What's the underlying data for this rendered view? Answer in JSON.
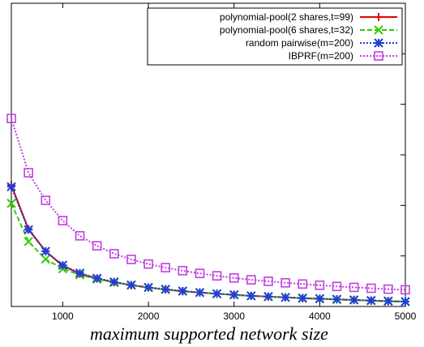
{
  "chart_data": {
    "type": "line",
    "title": "",
    "xlabel": "maximum supported network size",
    "ylabel": "",
    "xlim": [
      400,
      5000
    ],
    "ylim": [
      0,
      1
    ],
    "x_ticks": [
      1000,
      2000,
      3000,
      4000,
      5000
    ],
    "y_ticks": [
      0,
      0.1667,
      0.3333,
      0.5,
      0.6667,
      0.8333,
      1
    ],
    "grid": false,
    "legend_position": "top-right",
    "x": [
      400,
      600,
      800,
      1000,
      1200,
      1400,
      1600,
      1800,
      2000,
      2200,
      2400,
      2600,
      2800,
      3000,
      3200,
      3400,
      3600,
      3800,
      4000,
      4200,
      4400,
      4600,
      4800,
      5000
    ],
    "series": [
      {
        "name": "polynomial-pool(2 shares,t=99)",
        "color": "#e00000",
        "marker": "plus",
        "dash": "solid",
        "values": [
          0.4,
          0.255,
          0.182,
          0.134,
          0.108,
          0.092,
          0.08,
          0.07,
          0.062,
          0.056,
          0.05,
          0.046,
          0.042,
          0.038,
          0.035,
          0.032,
          0.03,
          0.027,
          0.025,
          0.023,
          0.021,
          0.019,
          0.017,
          0.016
        ]
      },
      {
        "name": "polynomial-pool(6 shares,t=32)",
        "color": "#33cc00",
        "marker": "x",
        "dash": "dashed",
        "values": [
          0.34,
          0.214,
          0.156,
          0.124,
          0.104,
          0.09,
          0.079,
          0.07,
          0.062,
          0.056,
          0.05,
          0.046,
          0.042,
          0.038,
          0.035,
          0.032,
          0.03,
          0.027,
          0.025,
          0.023,
          0.021,
          0.019,
          0.017,
          0.016
        ]
      },
      {
        "name": "random pairwise(m=200)",
        "color": "#1f3fd8",
        "marker": "star",
        "dash": "dotted",
        "values": [
          0.395,
          0.253,
          0.182,
          0.136,
          0.11,
          0.093,
          0.081,
          0.071,
          0.063,
          0.057,
          0.051,
          0.046,
          0.042,
          0.039,
          0.035,
          0.033,
          0.03,
          0.028,
          0.026,
          0.024,
          0.022,
          0.02,
          0.018,
          0.016
        ]
      },
      {
        "name": "IBPRF(m=200)",
        "color": "#c040e0",
        "marker": "square",
        "dash": "dotted",
        "values": [
          0.62,
          0.441,
          0.35,
          0.283,
          0.233,
          0.2,
          0.174,
          0.155,
          0.14,
          0.128,
          0.118,
          0.109,
          0.101,
          0.094,
          0.088,
          0.083,
          0.078,
          0.074,
          0.07,
          0.066,
          0.063,
          0.06,
          0.057,
          0.055
        ]
      }
    ]
  }
}
